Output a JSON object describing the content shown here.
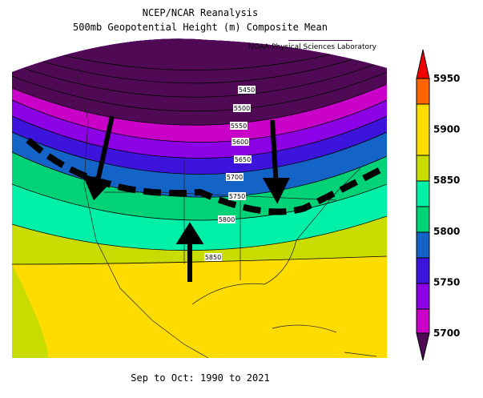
{
  "header": {
    "title": "NCEP/NCAR Reanalysis",
    "subtitle": "500mb Geopotential Height (m) Composite Mean",
    "credit": "NOAA Physical Sciences Laboratory"
  },
  "contour_labels": [
    5450,
    5500,
    5550,
    5600,
    5650,
    5700,
    5750,
    5800,
    5850
  ],
  "colorbar": {
    "labels": [
      5950,
      5900,
      5850,
      5800,
      5750,
      5700
    ]
  },
  "footer": "Sep to Oct: 1990 to 2021"
}
